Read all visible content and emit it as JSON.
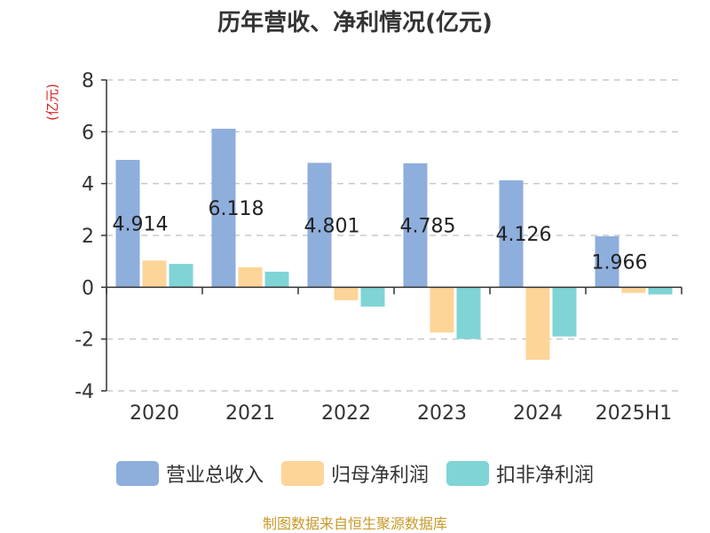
{
  "title": "历年营收、净利情况(亿元)",
  "footer": "制图数据来自恒生聚源数据库",
  "colors": {
    "revenue": "#8eaedc",
    "net_profit": "#fdd598",
    "deducted_profit": "#7fd4d6",
    "ylabel": "#e02020",
    "axis": "#333333",
    "grid": "#c8c8c8"
  },
  "chart_data": {
    "type": "bar",
    "title": "历年营收、净利情况(亿元)",
    "ylabel": "(亿元)",
    "xlabel": "",
    "ylim": [
      -4,
      8
    ],
    "yticks": [
      -4,
      -2,
      0,
      2,
      4,
      6,
      8
    ],
    "grid": true,
    "legend_position": "bottom",
    "categories": [
      "2020",
      "2021",
      "2022",
      "2023",
      "2024",
      "2025H1"
    ],
    "series": [
      {
        "name": "营业总收入",
        "values": [
          4.914,
          6.118,
          4.801,
          4.785,
          4.126,
          1.966
        ],
        "data_labels": [
          "4.914",
          "6.118",
          "4.801",
          "4.785",
          "4.126",
          "1.966"
        ]
      },
      {
        "name": "归母净利润",
        "values": [
          1.03,
          0.77,
          -0.5,
          -1.75,
          -2.8,
          -0.22
        ]
      },
      {
        "name": "扣非净利润",
        "values": [
          0.9,
          0.6,
          -0.75,
          -2.0,
          -1.9,
          -0.28
        ]
      }
    ]
  }
}
